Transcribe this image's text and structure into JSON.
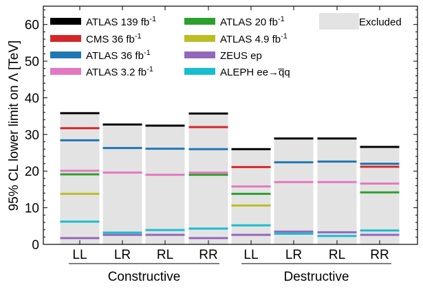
{
  "chart_data": {
    "type": "bar",
    "ylabel": "95% CL lower limit on Λ [TeV]",
    "ylim": [
      0,
      65
    ],
    "yticks": [
      0,
      10,
      20,
      30,
      40,
      50,
      60
    ],
    "categories": [
      "LL",
      "LR",
      "RL",
      "RR",
      "LL",
      "LR",
      "RL",
      "RR"
    ],
    "groups": [
      {
        "label": "Constructive",
        "categories": [
          "LL",
          "LR",
          "RL",
          "RR"
        ]
      },
      {
        "label": "Destructive",
        "categories": [
          "LL",
          "LR",
          "RL",
          "RR"
        ]
      }
    ],
    "excluded": {
      "label": "Excluded",
      "color": "#e3e3e3",
      "values": [
        35.8,
        32.7,
        32.4,
        35.7,
        26.0,
        28.9,
        28.9,
        26.6
      ]
    },
    "series": [
      {
        "name": "ATLAS 139 fb",
        "sup": "-1",
        "color": "#000000",
        "values": [
          35.8,
          32.7,
          32.4,
          35.7,
          26.0,
          28.9,
          28.9,
          26.6
        ]
      },
      {
        "name": "CMS 36 fb",
        "sup": "-1",
        "color": "#d62728",
        "values": [
          31.7,
          null,
          null,
          32.0,
          21.1,
          null,
          null,
          21.2
        ]
      },
      {
        "name": "ATLAS 36 fb",
        "sup": "-1",
        "color": "#1f77b4",
        "values": [
          28.4,
          26.3,
          26.1,
          26.0,
          null,
          22.4,
          22.6,
          22.0
        ]
      },
      {
        "name": "ATLAS 3.2 fb",
        "sup": "-1",
        "color": "#e377c2",
        "values": [
          20.1,
          19.6,
          19.0,
          19.6,
          15.8,
          17.0,
          17.0,
          16.6
        ]
      },
      {
        "name": "ATLAS 20 fb",
        "sup": "-1",
        "color": "#2ca02c",
        "values": [
          19.1,
          null,
          null,
          19.0,
          13.8,
          null,
          null,
          14.2
        ]
      },
      {
        "name": "ATLAS 4.9 fb",
        "sup": "-1",
        "color": "#bcbd22",
        "values": [
          13.8,
          null,
          null,
          null,
          10.6,
          null,
          null,
          null
        ]
      },
      {
        "name": "ZEUS ep",
        "sup": "",
        "color": "#9467bd",
        "values": [
          1.7,
          2.6,
          2.6,
          1.7,
          2.6,
          3.5,
          3.3,
          2.6
        ]
      },
      {
        "name": "ALEPH ee→q̅q",
        "sup": "",
        "color": "#17becf",
        "values": [
          6.2,
          3.2,
          3.9,
          4.3,
          5.2,
          2.9,
          2.3,
          3.8
        ]
      }
    ],
    "legend_position": "top"
  }
}
